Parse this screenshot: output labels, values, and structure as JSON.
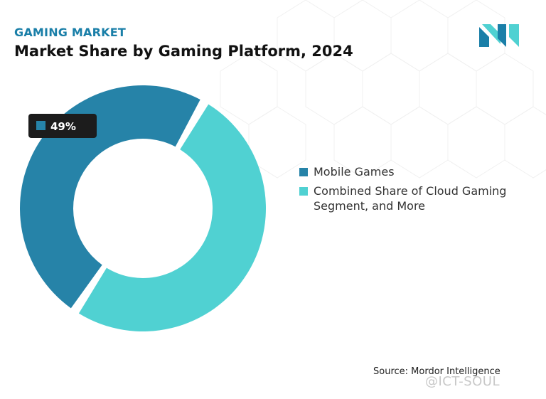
{
  "header": {
    "kicker": "GAMING MARKET",
    "title": "Market Share by Gaming Platform, 2024"
  },
  "colors": {
    "accent": "#1a7fa8",
    "mobile": "#2683a8",
    "cloud": "#50d1d2",
    "label_bg": "#1c1c1c"
  },
  "logo": {
    "icon": "mordor-intelligence-logo-icon"
  },
  "chart_data": {
    "type": "pie",
    "donut": true,
    "categories": [
      "Mobile Games",
      "Combined Share of Cloud Gaming Segment, and More"
    ],
    "values": [
      49,
      51
    ],
    "data_labels": [
      "49%",
      ""
    ],
    "title": "Market Share by Gaming Platform, 2024",
    "legend_position": "right",
    "legend": [
      "Mobile Games",
      "Combined Share of Cloud Gaming Segment, and More"
    ]
  },
  "legend": {
    "items": [
      {
        "label_line1": "Mobile Games",
        "label_line2": "",
        "color": "#2683a8"
      },
      {
        "label_line1": "Combined Share of Cloud Gaming",
        "label_line2": "Segment, and More",
        "color": "#50d1d2"
      }
    ]
  },
  "footer": {
    "source": "Source: Mordor Intelligence",
    "watermark": "@ICT-SOUL"
  }
}
